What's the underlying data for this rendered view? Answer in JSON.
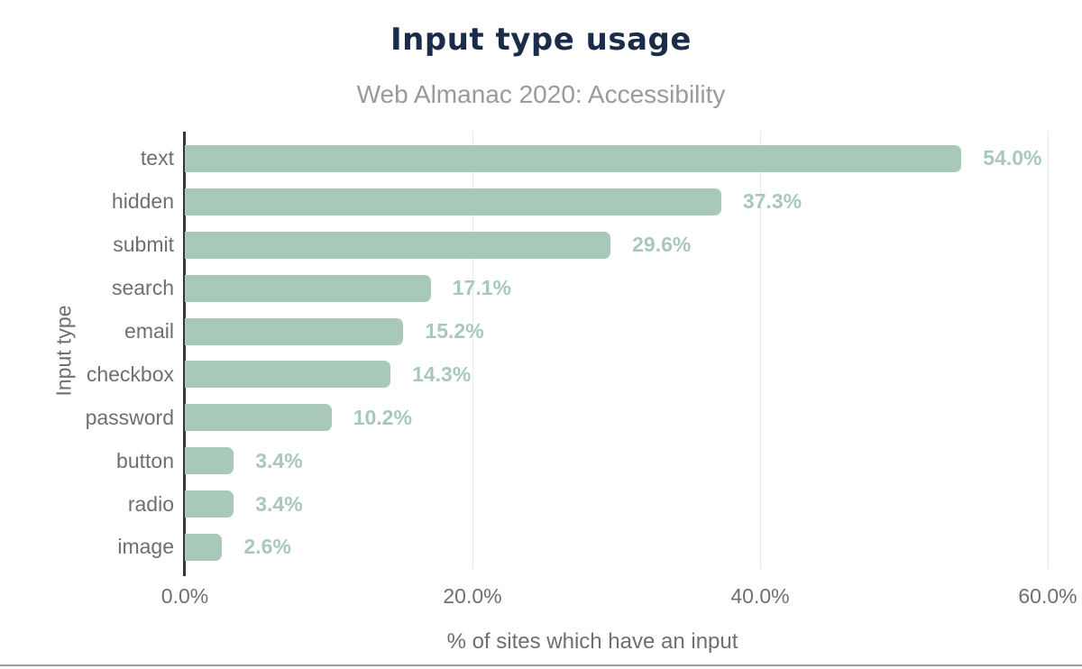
{
  "chart_data": {
    "type": "bar",
    "orientation": "horizontal",
    "title": "Input type usage",
    "subtitle": "Web Almanac 2020: Accessibility",
    "xlabel": "% of sites which have an input",
    "ylabel": "Input type",
    "categories": [
      "text",
      "hidden",
      "submit",
      "search",
      "email",
      "checkbox",
      "password",
      "button",
      "radio",
      "image"
    ],
    "values": [
      54.0,
      37.3,
      29.6,
      17.1,
      15.2,
      14.3,
      10.2,
      3.4,
      3.4,
      2.6
    ],
    "value_labels": [
      "54.0%",
      "37.3%",
      "29.6%",
      "17.1%",
      "15.2%",
      "14.3%",
      "10.2%",
      "3.4%",
      "3.4%",
      "2.6%"
    ],
    "xlim": [
      0,
      60
    ],
    "x_ticks": [
      {
        "label": "0.0%",
        "value": 0
      },
      {
        "label": "20.0%",
        "value": 20
      },
      {
        "label": "40.0%",
        "value": 40
      },
      {
        "label": "60.0%",
        "value": 60
      }
    ],
    "grid": "vertical-gridlines",
    "legend": "none",
    "colors": {
      "bar": "#a8c9b7",
      "value_label": "#a8c9b7",
      "title": "#1b2b4a",
      "subtitle": "#9a9a9a",
      "axis_text": "#6f6f6f",
      "gridline": "#e8e8e8",
      "axis_line": "#373737",
      "bottom_rule": "#9b9b9b",
      "background": "#ffffff"
    }
  }
}
